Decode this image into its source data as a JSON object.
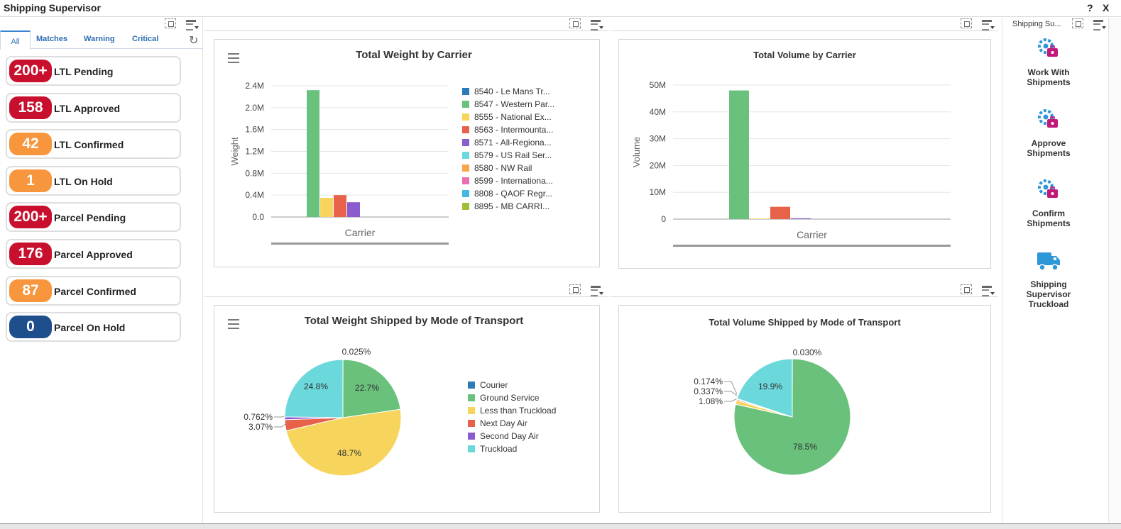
{
  "window": {
    "title": "Shipping Supervisor",
    "help": "?",
    "close": "X"
  },
  "watchlist": {
    "tabs": [
      "All",
      "Matches",
      "Warning",
      "Critical"
    ],
    "items": [
      {
        "count": "200+",
        "label": "LTL Pending",
        "color": "#c8102e"
      },
      {
        "count": "158",
        "label": "LTL Approved",
        "color": "#c8102e"
      },
      {
        "count": "42",
        "label": "LTL Confirmed",
        "color": "#f7963c"
      },
      {
        "count": "1",
        "label": "LTL On Hold",
        "color": "#f7963c"
      },
      {
        "count": "200+",
        "label": "Parcel Pending",
        "color": "#c8102e"
      },
      {
        "count": "176",
        "label": "Parcel Approved",
        "color": "#c8102e"
      },
      {
        "count": "87",
        "label": "Parcel Confirmed",
        "color": "#f7963c"
      },
      {
        "count": "0",
        "label": "Parcel On Hold",
        "color": "#1f4e8c"
      }
    ]
  },
  "quick_links": {
    "header": "Shipping Su...",
    "items": [
      {
        "line1": "Work With",
        "line2": "Shipments",
        "line3": "",
        "icon": "gear-bag-icon"
      },
      {
        "line1": "Approve",
        "line2": "Shipments",
        "line3": "",
        "icon": "gear-bag-icon"
      },
      {
        "line1": "Confirm",
        "line2": "Shipments",
        "line3": "",
        "icon": "gear-bag-icon"
      },
      {
        "line1": "Shipping",
        "line2": "Supervisor",
        "line3": "Truckload",
        "icon": "truck-icon"
      }
    ]
  },
  "colors": {
    "blue": "#2b7bba",
    "green": "#6ac17c",
    "yellow": "#f7d55c",
    "red": "#e8624a",
    "purple": "#8a5cce",
    "cyan": "#6bd8db",
    "orange": "#f7a94a",
    "pink": "#e86fb0",
    "skyblue": "#45b6e6",
    "olive": "#9fbf3b"
  },
  "chart_data": [
    {
      "type": "bar",
      "title": "Total Weight by Carrier",
      "xlabel": "Carrier",
      "ylabel": "Weight",
      "ylim": [
        0,
        2400000
      ],
      "yticks": [
        "2.4M",
        "2.0M",
        "1.6M",
        "1.2M",
        "0.8M",
        "0.4M",
        "0.0"
      ],
      "legend_position": "right",
      "series": [
        {
          "name": "8540 - Le Mans Tr...",
          "value": 0,
          "color": "#2b7bba"
        },
        {
          "name": "8547 - Western Par...",
          "value": 2320000,
          "color": "#6ac17c"
        },
        {
          "name": "8555 - National Ex...",
          "value": 350000,
          "color": "#f7d55c"
        },
        {
          "name": "8563 - Intermounta...",
          "value": 400000,
          "color": "#e8624a"
        },
        {
          "name": "8571 - All-Regiona...",
          "value": 270000,
          "color": "#8a5cce"
        },
        {
          "name": "8579 - US Rail Ser...",
          "value": 0,
          "color": "#6bd8db"
        },
        {
          "name": "8580 - NW Rail",
          "value": 0,
          "color": "#f7a94a"
        },
        {
          "name": "8599 - Internationa...",
          "value": 0,
          "color": "#e86fb0"
        },
        {
          "name": "8808 - QAOF Regr...",
          "value": 0,
          "color": "#45b6e6"
        },
        {
          "name": "8895 - MB CARRI...",
          "value": 0,
          "color": "#9fbf3b"
        }
      ]
    },
    {
      "type": "bar",
      "title": "Total Volume by Carrier",
      "xlabel": "Carrier",
      "ylabel": "Volume",
      "ylim": [
        0,
        50000000
      ],
      "yticks": [
        "50M",
        "40M",
        "30M",
        "20M",
        "10M",
        "0"
      ],
      "series": [
        {
          "value": 0,
          "color": "#2b7bba"
        },
        {
          "value": 48000000,
          "color": "#6ac17c"
        },
        {
          "value": 200000,
          "color": "#f7d55c"
        },
        {
          "value": 4600000,
          "color": "#e8624a"
        },
        {
          "value": 300000,
          "color": "#8a5cce"
        }
      ]
    },
    {
      "type": "pie",
      "title": "Total Weight Shipped by Mode of Transport",
      "legend_position": "right",
      "slices": [
        {
          "name": "Courier",
          "value": 0.025,
          "label": "0.025%",
          "color": "#2b7bba"
        },
        {
          "name": "Ground Service",
          "value": 22.7,
          "label": "22.7%",
          "color": "#6ac17c"
        },
        {
          "name": "Less than Truckload",
          "value": 48.7,
          "label": "48.7%",
          "color": "#f7d55c"
        },
        {
          "name": "Next Day Air",
          "value": 3.07,
          "label": "3.07%",
          "color": "#e8624a"
        },
        {
          "name": "Second Day Air",
          "value": 0.762,
          "label": "0.762%",
          "color": "#8a5cce"
        },
        {
          "name": "Truckload",
          "value": 24.8,
          "label": "24.8%",
          "color": "#6bd8db"
        }
      ]
    },
    {
      "type": "pie",
      "title": "Total Volume Shipped by Mode of Transport",
      "slices": [
        {
          "value": 0.03,
          "label": "0.030%",
          "color": "#2b7bba"
        },
        {
          "value": 78.5,
          "label": "78.5%",
          "color": "#6ac17c"
        },
        {
          "value": 1.08,
          "label": "1.08%",
          "color": "#f7d55c"
        },
        {
          "value": 0.337,
          "label": "0.337%",
          "color": "#e8624a"
        },
        {
          "value": 0.174,
          "label": "0.174%",
          "color": "#8a5cce"
        },
        {
          "value": 19.9,
          "label": "19.9%",
          "color": "#6bd8db"
        }
      ]
    }
  ]
}
